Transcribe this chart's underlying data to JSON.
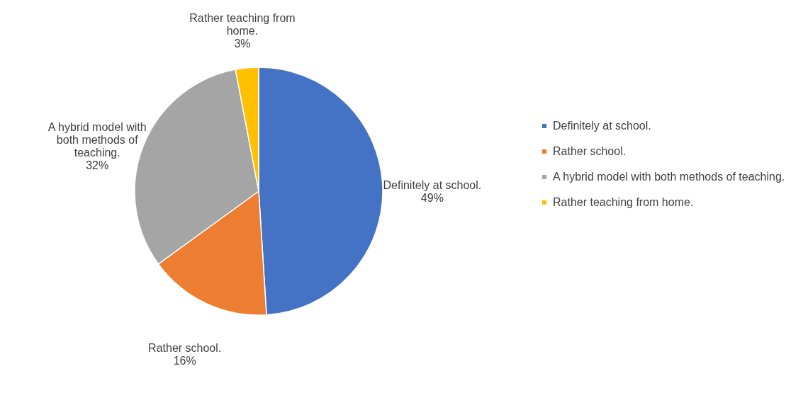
{
  "chart_data": {
    "type": "pie",
    "categories": [
      "Definitely at school.",
      "Rather school.",
      "A hybrid model with both methods of teaching.",
      "Rather teaching from home."
    ],
    "values": [
      49,
      16,
      32,
      3
    ],
    "colors": [
      "#4472c4",
      "#ed7d31",
      "#a5a5a5",
      "#ffc000"
    ],
    "value_labels": [
      "49%",
      "16%",
      "32%",
      "3%"
    ],
    "legend": "right"
  }
}
